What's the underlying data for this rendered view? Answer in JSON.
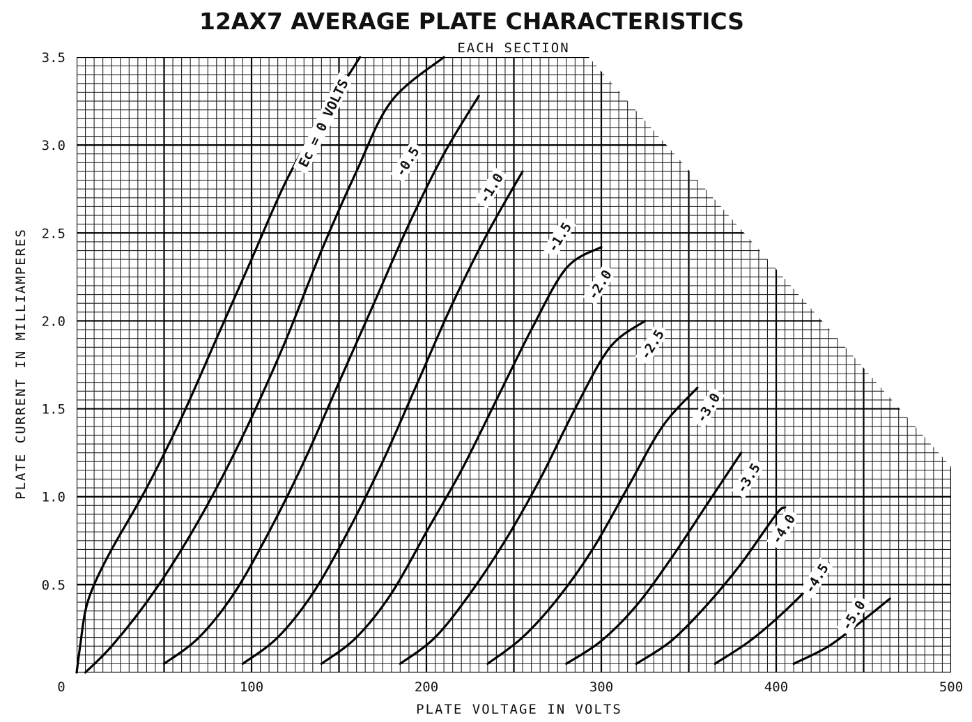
{
  "chart_data": {
    "type": "line",
    "title": "12AX7 AVERAGE PLATE CHARACTERISTICS",
    "subtitle": "EACH SECTION",
    "xlabel": "PLATE VOLTAGE IN VOLTS",
    "ylabel": "PLATE CURRENT IN MILLIAMPERES",
    "xlim": [
      0,
      500
    ],
    "ylim": [
      0,
      3.5
    ],
    "x_ticks": [
      "0",
      "100",
      "200",
      "300",
      "400",
      "500"
    ],
    "y_ticks": [
      "0.5",
      "1.0",
      "1.5",
      "2.0",
      "2.5",
      "3.0",
      "3.5"
    ],
    "grid": true,
    "series": [
      {
        "name": "Ec = 0 VOLTS",
        "points": [
          [
            0,
            0
          ],
          [
            2,
            0.15
          ],
          [
            5,
            0.35
          ],
          [
            10,
            0.5
          ],
          [
            20,
            0.7
          ],
          [
            40,
            1.05
          ],
          [
            60,
            1.45
          ],
          [
            80,
            1.9
          ],
          [
            100,
            2.35
          ],
          [
            120,
            2.8
          ],
          [
            140,
            3.15
          ],
          [
            162,
            3.5
          ]
        ]
      },
      {
        "name": "-0.5",
        "points": [
          [
            5,
            0
          ],
          [
            20,
            0.15
          ],
          [
            40,
            0.4
          ],
          [
            60,
            0.7
          ],
          [
            80,
            1.05
          ],
          [
            100,
            1.45
          ],
          [
            120,
            1.9
          ],
          [
            140,
            2.4
          ],
          [
            160,
            2.85
          ],
          [
            180,
            3.25
          ],
          [
            210,
            3.5
          ]
        ]
      },
      {
        "name": "-1.0",
        "points": [
          [
            50,
            0.05
          ],
          [
            70,
            0.2
          ],
          [
            90,
            0.45
          ],
          [
            110,
            0.8
          ],
          [
            130,
            1.2
          ],
          [
            150,
            1.65
          ],
          [
            170,
            2.1
          ],
          [
            190,
            2.55
          ],
          [
            210,
            2.95
          ],
          [
            230,
            3.28
          ]
        ]
      },
      {
        "name": "-1.5",
        "points": [
          [
            95,
            0.05
          ],
          [
            115,
            0.2
          ],
          [
            135,
            0.45
          ],
          [
            155,
            0.8
          ],
          [
            175,
            1.2
          ],
          [
            195,
            1.65
          ],
          [
            215,
            2.1
          ],
          [
            235,
            2.5
          ],
          [
            255,
            2.85
          ]
        ]
      },
      {
        "name": "-2.0",
        "points": [
          [
            140,
            0.05
          ],
          [
            160,
            0.2
          ],
          [
            180,
            0.45
          ],
          [
            200,
            0.8
          ],
          [
            220,
            1.15
          ],
          [
            240,
            1.55
          ],
          [
            260,
            1.95
          ],
          [
            280,
            2.3
          ],
          [
            300,
            2.42
          ]
        ]
      },
      {
        "name": "-2.5",
        "points": [
          [
            185,
            0.05
          ],
          [
            205,
            0.2
          ],
          [
            225,
            0.45
          ],
          [
            245,
            0.75
          ],
          [
            265,
            1.1
          ],
          [
            285,
            1.5
          ],
          [
            305,
            1.85
          ],
          [
            325,
            2.0
          ]
        ]
      },
      {
        "name": "-3.0",
        "points": [
          [
            235,
            0.05
          ],
          [
            255,
            0.2
          ],
          [
            275,
            0.42
          ],
          [
            295,
            0.7
          ],
          [
            315,
            1.05
          ],
          [
            335,
            1.4
          ],
          [
            355,
            1.62
          ]
        ]
      },
      {
        "name": "-3.5",
        "points": [
          [
            280,
            0.05
          ],
          [
            300,
            0.18
          ],
          [
            320,
            0.38
          ],
          [
            340,
            0.65
          ],
          [
            360,
            0.95
          ],
          [
            380,
            1.25
          ]
        ]
      },
      {
        "name": "-4.0",
        "points": [
          [
            320,
            0.05
          ],
          [
            340,
            0.18
          ],
          [
            360,
            0.38
          ],
          [
            380,
            0.62
          ],
          [
            400,
            0.9
          ],
          [
            405,
            0.94
          ]
        ]
      },
      {
        "name": "-4.5",
        "points": [
          [
            365,
            0.05
          ],
          [
            385,
            0.18
          ],
          [
            405,
            0.35
          ],
          [
            425,
            0.55
          ],
          [
            430,
            0.62
          ]
        ]
      },
      {
        "name": "-5.0",
        "points": [
          [
            410,
            0.05
          ],
          [
            430,
            0.15
          ],
          [
            450,
            0.3
          ],
          [
            465,
            0.42
          ]
        ]
      }
    ],
    "curve_labels": [
      {
        "text": "Ec = 0 VOLTS",
        "x": 142,
        "y": 3.12
      },
      {
        "text": "-0.5",
        "x": 190,
        "y": 2.9
      },
      {
        "text": "-1.0",
        "x": 238,
        "y": 2.75
      },
      {
        "text": "-1.5",
        "x": 277,
        "y": 2.47
      },
      {
        "text": "-2.0",
        "x": 300,
        "y": 2.2
      },
      {
        "text": "-2.5",
        "x": 330,
        "y": 1.86
      },
      {
        "text": "-3.0",
        "x": 362,
        "y": 1.5
      },
      {
        "text": "-3.5",
        "x": 385,
        "y": 1.1
      },
      {
        "text": "-4.0",
        "x": 405,
        "y": 0.81
      },
      {
        "text": "-4.5",
        "x": 424,
        "y": 0.53
      },
      {
        "text": "-5.0",
        "x": 445,
        "y": 0.32
      }
    ]
  }
}
